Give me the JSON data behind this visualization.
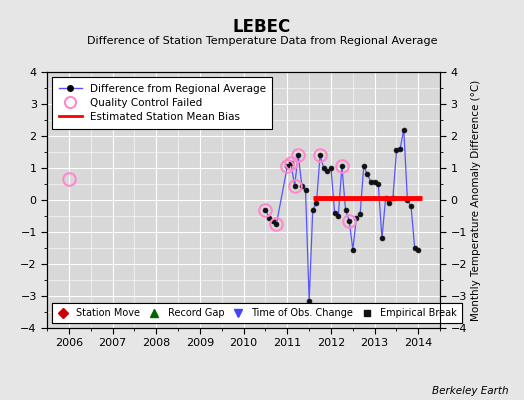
{
  "title": "LEBEC",
  "subtitle": "Difference of Station Temperature Data from Regional Average",
  "ylabel_right": "Monthly Temperature Anomaly Difference (°C)",
  "credit": "Berkeley Earth",
  "xlim": [
    2005.5,
    2014.5
  ],
  "ylim": [
    -4,
    4
  ],
  "yticks": [
    -4,
    -3,
    -2,
    -1,
    0,
    1,
    2,
    3,
    4
  ],
  "xticks": [
    2006,
    2007,
    2008,
    2009,
    2010,
    2011,
    2012,
    2013,
    2014
  ],
  "background_color": "#e6e6e6",
  "plot_bg_color": "#d8d8d8",
  "grid_color": "#ffffff",
  "main_line_color": "#5555ff",
  "main_marker_color": "#111111",
  "bias_line_color": "#ff0000",
  "bias_x_start": 2011.58,
  "bias_x_end": 2014.08,
  "bias_y": 0.05,
  "qc_failed_color": "#ff88cc",
  "qc_failed_points": [
    [
      2006.0,
      0.65
    ],
    [
      2010.5,
      -0.3
    ],
    [
      2010.75,
      -0.75
    ],
    [
      2011.0,
      1.05
    ],
    [
      2011.083,
      1.15
    ],
    [
      2011.167,
      0.45
    ],
    [
      2011.25,
      1.4
    ],
    [
      2011.75,
      1.4
    ],
    [
      2012.25,
      1.05
    ],
    [
      2012.417,
      -0.65
    ]
  ],
  "main_data_x": [
    2010.5,
    2010.583,
    2010.667,
    2010.75,
    2011.0,
    2011.083,
    2011.167,
    2011.25,
    2011.333,
    2011.417,
    2011.5,
    2011.583,
    2011.667,
    2011.75,
    2011.833,
    2011.917,
    2012.0,
    2012.083,
    2012.167,
    2012.25,
    2012.333,
    2012.417,
    2012.5,
    2012.583,
    2012.667,
    2012.75,
    2012.833,
    2012.917,
    2013.0,
    2013.083,
    2013.167,
    2013.25,
    2013.333,
    2013.417,
    2013.5,
    2013.583,
    2013.667,
    2013.75,
    2013.833,
    2013.917,
    2014.0
  ],
  "main_data_y": [
    -0.3,
    -0.55,
    -0.65,
    -0.75,
    1.05,
    1.15,
    0.45,
    1.4,
    0.45,
    0.3,
    -3.15,
    -0.3,
    -0.1,
    1.4,
    1.0,
    0.9,
    1.0,
    -0.4,
    -0.5,
    1.05,
    -0.3,
    -0.65,
    -1.55,
    -0.55,
    -0.45,
    1.05,
    0.8,
    0.55,
    0.55,
    0.5,
    -1.2,
    0.05,
    -0.1,
    0.05,
    1.55,
    1.6,
    2.2,
    0.0,
    -0.2,
    -1.5,
    -1.55
  ],
  "station_move_color": "#cc0000",
  "record_gap_color": "#006600",
  "tobs_change_color": "#4444ff",
  "empirical_break_color": "#111111"
}
